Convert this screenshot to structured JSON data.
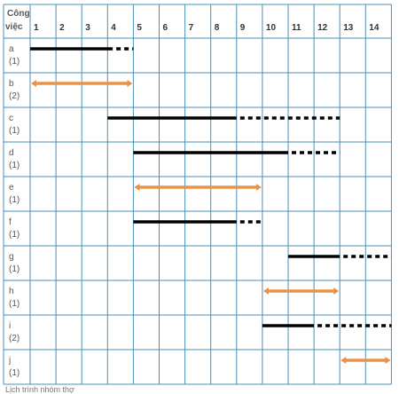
{
  "header": {
    "line1": "Công",
    "line2": "việc"
  },
  "columns": [
    "1",
    "2",
    "3",
    "4",
    "5",
    "6",
    "7",
    "8",
    "9",
    "10",
    "11",
    "12",
    "13",
    "14"
  ],
  "rows": [
    {
      "name": "a",
      "people": "(1)"
    },
    {
      "name": "b",
      "people": "(2)"
    },
    {
      "name": "c",
      "people": "(1)"
    },
    {
      "name": "d",
      "people": "(1)"
    },
    {
      "name": "e",
      "people": "(1)"
    },
    {
      "name": "f",
      "people": "(1)"
    },
    {
      "name": "g",
      "people": "(1)"
    },
    {
      "name": "h",
      "people": "(1)"
    },
    {
      "name": "i",
      "people": "(2)"
    },
    {
      "name": "j",
      "people": "(1)"
    }
  ],
  "colors": {
    "grid": "#4a8fb8",
    "bar": "#000000",
    "critical": "#e8934a"
  },
  "bars": [
    {
      "task": "a",
      "start": 0,
      "solid_end": 3.2,
      "end": 4,
      "type": "normal"
    },
    {
      "task": "b",
      "start": 0,
      "solid_end": 4,
      "end": 4,
      "type": "critical"
    },
    {
      "task": "c",
      "start": 3,
      "solid_end": 8,
      "end": 12,
      "type": "normal"
    },
    {
      "task": "d",
      "start": 4,
      "solid_end": 10,
      "end": 12,
      "type": "normal"
    },
    {
      "task": "e",
      "start": 4,
      "solid_end": 9,
      "end": 9,
      "type": "critical"
    },
    {
      "task": "f",
      "start": 4,
      "solid_end": 8,
      "end": 9,
      "type": "normal"
    },
    {
      "task": "g",
      "start": 10,
      "solid_end": 12,
      "end": 14,
      "type": "normal"
    },
    {
      "task": "h",
      "start": 9,
      "solid_end": 12,
      "end": 12,
      "type": "critical"
    },
    {
      "task": "i",
      "start": 9,
      "solid_end": 11,
      "end": 14,
      "type": "normal"
    },
    {
      "task": "j",
      "start": 12,
      "solid_end": 14,
      "end": 14,
      "type": "critical"
    }
  ],
  "footer": "Lịch trình nhóm thợ"
}
